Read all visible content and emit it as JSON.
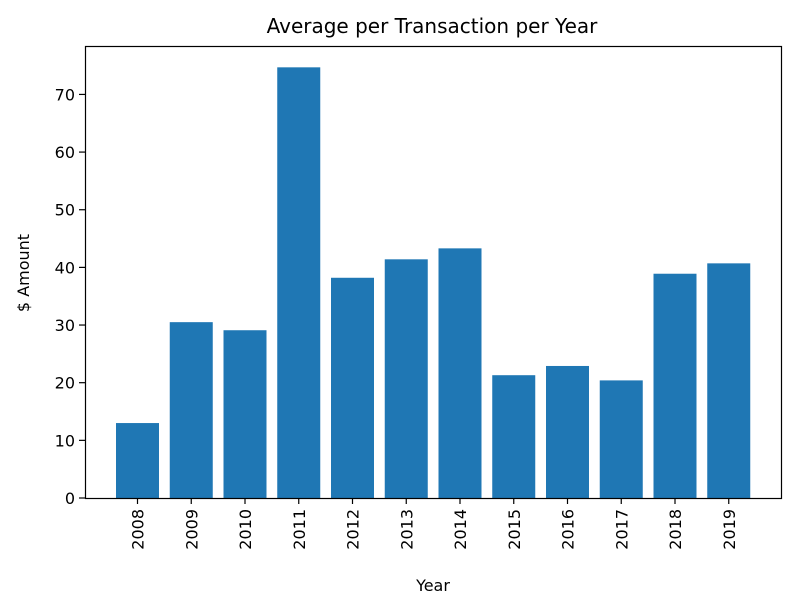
{
  "chart_data": {
    "type": "bar",
    "title": "Average per Transaction per Year",
    "xlabel": "Year",
    "ylabel": "$ Amount",
    "categories": [
      "2008",
      "2009",
      "2010",
      "2011",
      "2012",
      "2013",
      "2014",
      "2015",
      "2016",
      "2017",
      "2018",
      "2019"
    ],
    "values": [
      13.0,
      30.5,
      29.1,
      74.7,
      38.2,
      41.4,
      43.3,
      21.3,
      22.9,
      20.4,
      38.9,
      40.7
    ],
    "ylim": [
      0,
      78.4
    ],
    "yticks": [
      "0",
      "10",
      "20",
      "30",
      "40",
      "50",
      "60",
      "70"
    ],
    "grid": false,
    "bar_color": "#1f77b4"
  }
}
